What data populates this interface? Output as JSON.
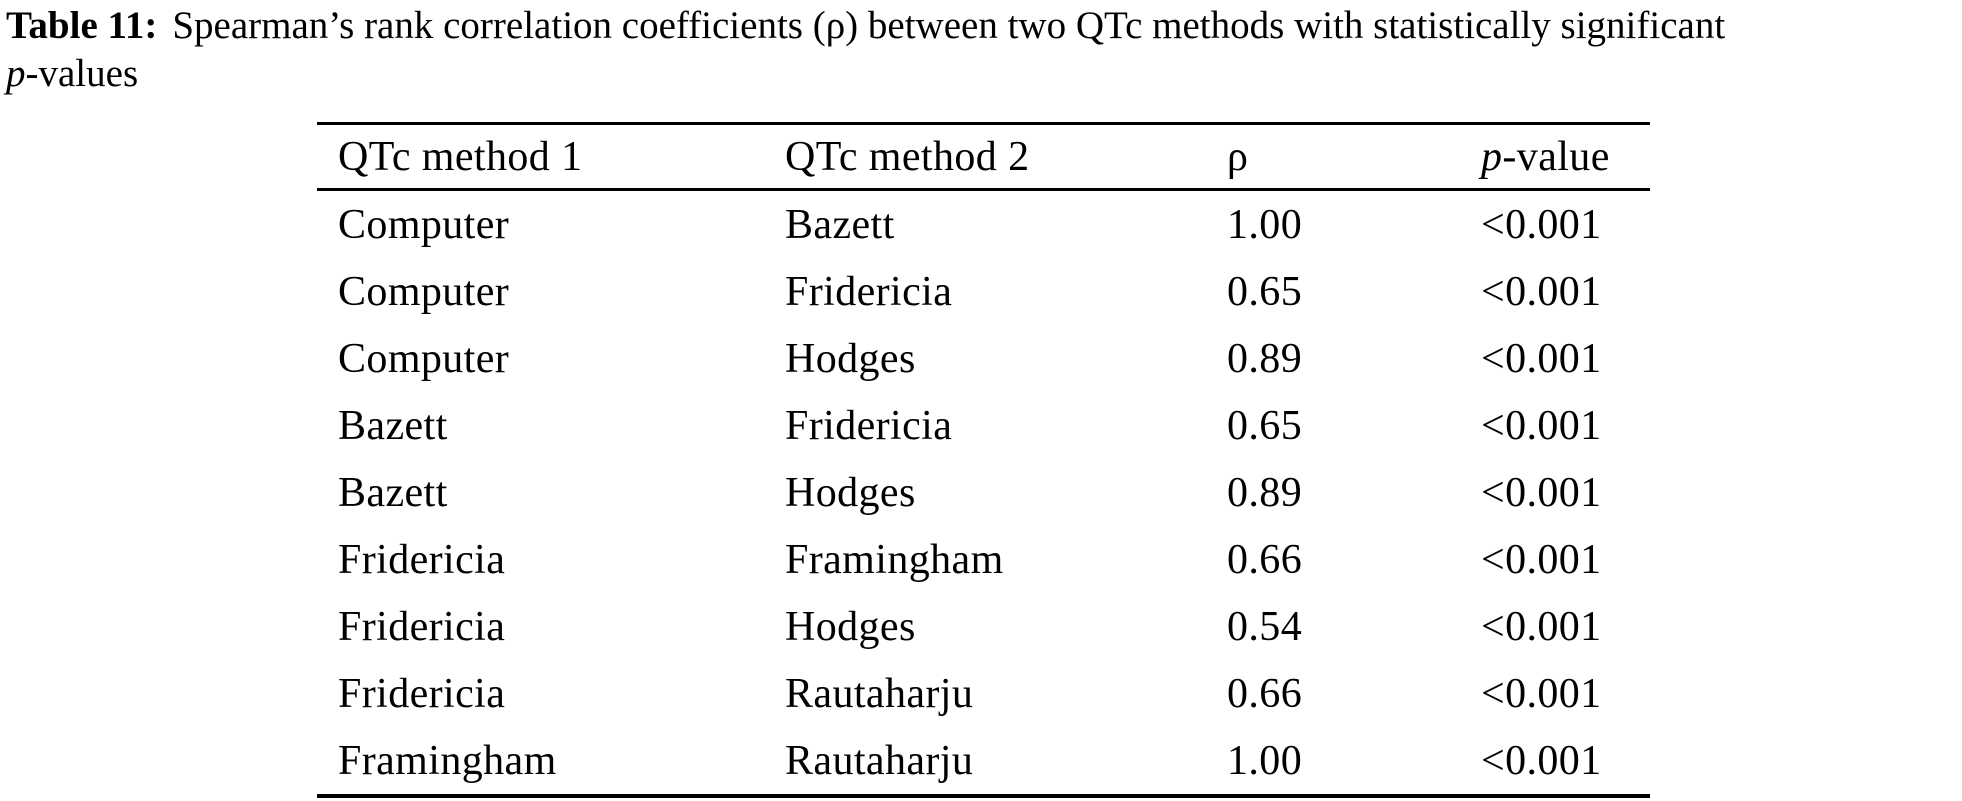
{
  "caption": {
    "label": "Table 11:",
    "line1": "Spearman’s rank correlation coefficients (ρ) between two QTc methods with statistically significant",
    "p_italic": "p",
    "line2_suffix": "-values"
  },
  "table": {
    "columns": [
      {
        "label": "QTc method 1"
      },
      {
        "label": "QTc method 2"
      },
      {
        "label": "ρ"
      },
      {
        "label_italic": "p",
        "label_rest": "-value"
      }
    ],
    "rows": [
      [
        "Computer",
        "Bazett",
        "1.00",
        "<0.001"
      ],
      [
        "Computer",
        "Fridericia",
        "0.65",
        "<0.001"
      ],
      [
        "Computer",
        "Hodges",
        "0.89",
        "<0.001"
      ],
      [
        "Bazett",
        "Fridericia",
        "0.65",
        "<0.001"
      ],
      [
        "Bazett",
        "Hodges",
        "0.89",
        "<0.001"
      ],
      [
        "Fridericia",
        "Framingham",
        "0.66",
        "<0.001"
      ],
      [
        "Fridericia",
        "Hodges",
        "0.54",
        "<0.001"
      ],
      [
        "Fridericia",
        "Rautaharju",
        "0.66",
        "<0.001"
      ],
      [
        "Framingham",
        "Rautaharju",
        "1.00",
        "<0.001"
      ]
    ]
  }
}
